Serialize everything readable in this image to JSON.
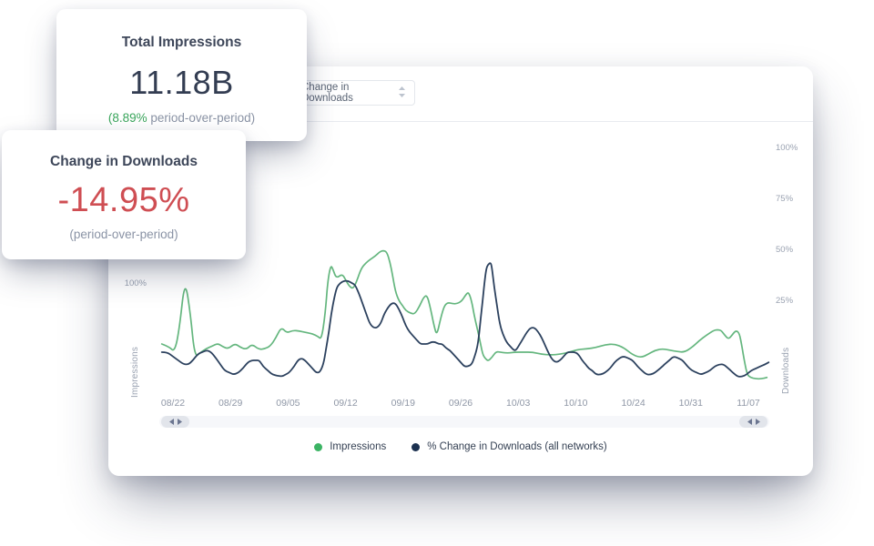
{
  "colors": {
    "accent_green": "#3cb464",
    "accent_red": "#cf4e53",
    "navy_text": "#333d52",
    "muted_gray": "#8a93a5",
    "axis_gray": "#9aa2b1",
    "line_green": "#64b67e",
    "line_navy": "#2c415e",
    "legend_navy_dot": "#1c3150"
  },
  "icons": {
    "select_chevron": "up-down-carets",
    "scroll_handle": "left-right-triangles"
  },
  "stat_cards": {
    "total_impressions": {
      "title": "Total Impressions",
      "value": "11.18B",
      "subtitle_highlight": "(8.89%",
      "subtitle_rest": " period-over-period)"
    },
    "change_in_downloads": {
      "title": "Change in Downloads",
      "value": "-14.95%",
      "subtitle": "(period-over-period)"
    }
  },
  "toolbar": {
    "metric_select": {
      "value": "Change in Downloads"
    }
  },
  "chart_data": {
    "type": "line",
    "x_categories": [
      "08/22",
      "08/29",
      "09/05",
      "09/12",
      "09/19",
      "09/26",
      "10/03",
      "10/10",
      "10/24",
      "10/31",
      "11/07"
    ],
    "axes": {
      "left": {
        "title": "Impressions",
        "ticks": [
          100
        ],
        "unit": "%"
      },
      "right": {
        "title": "Downloads",
        "ticks": [
          100,
          75,
          50,
          25
        ],
        "unit": "%"
      }
    },
    "grid": false,
    "legend_position": "bottom",
    "series": [
      {
        "name": "Impressions",
        "axis": "left",
        "color": "#64b67e",
        "dot_color": "#3cb464",
        "points": [
          [
            0.004,
            12
          ],
          [
            0.016,
            8
          ],
          [
            0.025,
            0
          ],
          [
            0.033,
            35
          ],
          [
            0.042,
            108
          ],
          [
            0.051,
            56
          ],
          [
            0.058,
            -7
          ],
          [
            0.067,
            -1
          ],
          [
            0.076,
            5
          ],
          [
            0.087,
            9
          ],
          [
            0.096,
            13
          ],
          [
            0.104,
            8
          ],
          [
            0.113,
            5
          ],
          [
            0.124,
            13
          ],
          [
            0.133,
            7
          ],
          [
            0.143,
            4
          ],
          [
            0.152,
            12
          ],
          [
            0.163,
            4
          ],
          [
            0.173,
            5
          ],
          [
            0.182,
            9
          ],
          [
            0.191,
            21
          ],
          [
            0.2,
            37
          ],
          [
            0.209,
            28
          ],
          [
            0.219,
            32
          ],
          [
            0.23,
            31
          ],
          [
            0.24,
            29
          ],
          [
            0.251,
            27
          ],
          [
            0.26,
            23
          ],
          [
            0.266,
            19
          ],
          [
            0.272,
            56
          ],
          [
            0.276,
            103
          ],
          [
            0.281,
            128
          ],
          [
            0.285,
            121
          ],
          [
            0.29,
            108
          ],
          [
            0.3,
            115
          ],
          [
            0.306,
            105
          ],
          [
            0.312,
            96
          ],
          [
            0.318,
            93
          ],
          [
            0.324,
            105
          ],
          [
            0.331,
            123
          ],
          [
            0.339,
            131
          ],
          [
            0.346,
            136
          ],
          [
            0.354,
            141
          ],
          [
            0.361,
            147
          ],
          [
            0.367,
            149
          ],
          [
            0.373,
            147
          ],
          [
            0.378,
            132
          ],
          [
            0.382,
            115
          ],
          [
            0.387,
            89
          ],
          [
            0.393,
            75
          ],
          [
            0.399,
            68
          ],
          [
            0.404,
            61
          ],
          [
            0.412,
            57
          ],
          [
            0.419,
            56
          ],
          [
            0.427,
            68
          ],
          [
            0.433,
            80
          ],
          [
            0.439,
            84
          ],
          [
            0.445,
            63
          ],
          [
            0.451,
            36
          ],
          [
            0.455,
            25
          ],
          [
            0.461,
            49
          ],
          [
            0.467,
            68
          ],
          [
            0.473,
            73
          ],
          [
            0.481,
            71
          ],
          [
            0.488,
            71
          ],
          [
            0.496,
            75
          ],
          [
            0.503,
            85
          ],
          [
            0.507,
            88
          ],
          [
            0.512,
            75
          ],
          [
            0.516,
            55
          ],
          [
            0.521,
            35
          ],
          [
            0.525,
            19
          ],
          [
            0.53,
            -3
          ],
          [
            0.534,
            -9
          ],
          [
            0.539,
            -13
          ],
          [
            0.545,
            -8
          ],
          [
            0.552,
            1
          ],
          [
            0.56,
            0
          ],
          [
            0.567,
            -1
          ],
          [
            0.575,
            -1
          ],
          [
            0.582,
            0
          ],
          [
            0.597,
            0
          ],
          [
            0.612,
            0
          ],
          [
            0.627,
            -3
          ],
          [
            0.642,
            -4
          ],
          [
            0.657,
            -3
          ],
          [
            0.672,
            0
          ],
          [
            0.687,
            4
          ],
          [
            0.701,
            5
          ],
          [
            0.716,
            7
          ],
          [
            0.731,
            11
          ],
          [
            0.746,
            12
          ],
          [
            0.761,
            7
          ],
          [
            0.776,
            -4
          ],
          [
            0.79,
            -8
          ],
          [
            0.801,
            -3
          ],
          [
            0.813,
            3
          ],
          [
            0.825,
            5
          ],
          [
            0.837,
            3
          ],
          [
            0.849,
            1
          ],
          [
            0.861,
            0
          ],
          [
            0.873,
            7
          ],
          [
            0.885,
            17
          ],
          [
            0.897,
            25
          ],
          [
            0.909,
            32
          ],
          [
            0.915,
            33
          ],
          [
            0.921,
            32
          ],
          [
            0.927,
            25
          ],
          [
            0.933,
            19
          ],
          [
            0.939,
            25
          ],
          [
            0.945,
            32
          ],
          [
            0.951,
            28
          ],
          [
            0.955,
            9
          ],
          [
            0.96,
            -17
          ],
          [
            0.964,
            -33
          ],
          [
            0.969,
            -37
          ],
          [
            0.978,
            -39
          ],
          [
            0.987,
            -39
          ],
          [
            0.996,
            -37
          ]
        ]
      },
      {
        "name": "% Change in Downloads (all networks)",
        "axis": "right",
        "color": "#2c415e",
        "dot_color": "#1c3150",
        "points": [
          [
            0.004,
            0
          ],
          [
            0.013,
            0
          ],
          [
            0.022,
            -2
          ],
          [
            0.031,
            -4
          ],
          [
            0.04,
            -6
          ],
          [
            0.048,
            -6
          ],
          [
            0.055,
            -4
          ],
          [
            0.063,
            -1
          ],
          [
            0.07,
            0
          ],
          [
            0.078,
            1
          ],
          [
            0.085,
            0
          ],
          [
            0.093,
            -3
          ],
          [
            0.1,
            -6
          ],
          [
            0.107,
            -9
          ],
          [
            0.115,
            -10
          ],
          [
            0.122,
            -11
          ],
          [
            0.13,
            -10
          ],
          [
            0.137,
            -8
          ],
          [
            0.145,
            -5
          ],
          [
            0.152,
            -4
          ],
          [
            0.158,
            -4
          ],
          [
            0.164,
            -4
          ],
          [
            0.17,
            -7
          ],
          [
            0.178,
            -9
          ],
          [
            0.185,
            -11
          ],
          [
            0.2,
            -12
          ],
          [
            0.207,
            -11
          ],
          [
            0.213,
            -10
          ],
          [
            0.221,
            -7
          ],
          [
            0.227,
            -4
          ],
          [
            0.233,
            -3
          ],
          [
            0.239,
            -4
          ],
          [
            0.245,
            -6
          ],
          [
            0.251,
            -8
          ],
          [
            0.257,
            -10
          ],
          [
            0.263,
            -10
          ],
          [
            0.269,
            -6
          ],
          [
            0.273,
            1
          ],
          [
            0.278,
            10
          ],
          [
            0.282,
            19
          ],
          [
            0.287,
            27
          ],
          [
            0.291,
            32
          ],
          [
            0.297,
            34
          ],
          [
            0.303,
            35
          ],
          [
            0.309,
            35
          ],
          [
            0.315,
            34
          ],
          [
            0.321,
            33
          ],
          [
            0.327,
            29
          ],
          [
            0.333,
            24
          ],
          [
            0.339,
            19
          ],
          [
            0.345,
            14
          ],
          [
            0.351,
            12
          ],
          [
            0.357,
            12
          ],
          [
            0.363,
            14
          ],
          [
            0.369,
            19
          ],
          [
            0.375,
            22
          ],
          [
            0.381,
            24
          ],
          [
            0.387,
            24
          ],
          [
            0.393,
            21
          ],
          [
            0.399,
            17
          ],
          [
            0.404,
            13
          ],
          [
            0.41,
            10
          ],
          [
            0.416,
            8
          ],
          [
            0.422,
            6
          ],
          [
            0.428,
            4
          ],
          [
            0.434,
            4
          ],
          [
            0.44,
            4
          ],
          [
            0.446,
            5
          ],
          [
            0.452,
            5
          ],
          [
            0.458,
            4
          ],
          [
            0.464,
            4
          ],
          [
            0.47,
            2
          ],
          [
            0.476,
            1
          ],
          [
            0.482,
            -1
          ],
          [
            0.488,
            -3
          ],
          [
            0.494,
            -5
          ],
          [
            0.5,
            -7
          ],
          [
            0.506,
            -7
          ],
          [
            0.512,
            -6
          ],
          [
            0.516,
            -3
          ],
          [
            0.521,
            2
          ],
          [
            0.524,
            8
          ],
          [
            0.527,
            17
          ],
          [
            0.53,
            25
          ],
          [
            0.533,
            34
          ],
          [
            0.536,
            41
          ],
          [
            0.539,
            43
          ],
          [
            0.543,
            44
          ],
          [
            0.545,
            42
          ],
          [
            0.549,
            32
          ],
          [
            0.554,
            22
          ],
          [
            0.558,
            14
          ],
          [
            0.563,
            9
          ],
          [
            0.569,
            5
          ],
          [
            0.575,
            3
          ],
          [
            0.581,
            1
          ],
          [
            0.585,
            1
          ],
          [
            0.591,
            4
          ],
          [
            0.597,
            7
          ],
          [
            0.603,
            10
          ],
          [
            0.609,
            12
          ],
          [
            0.615,
            12
          ],
          [
            0.621,
            10
          ],
          [
            0.627,
            7
          ],
          [
            0.633,
            3
          ],
          [
            0.639,
            -1
          ],
          [
            0.645,
            -4
          ],
          [
            0.651,
            -5
          ],
          [
            0.657,
            -4
          ],
          [
            0.663,
            -2
          ],
          [
            0.669,
            0
          ],
          [
            0.675,
            0
          ],
          [
            0.681,
            0
          ],
          [
            0.687,
            -1
          ],
          [
            0.693,
            -4
          ],
          [
            0.699,
            -6
          ],
          [
            0.704,
            -8
          ],
          [
            0.71,
            -9
          ],
          [
            0.716,
            -11
          ],
          [
            0.724,
            -11
          ],
          [
            0.731,
            -10
          ],
          [
            0.739,
            -8
          ],
          [
            0.746,
            -5
          ],
          [
            0.754,
            -3
          ],
          [
            0.761,
            -2
          ],
          [
            0.769,
            -3
          ],
          [
            0.776,
            -4
          ],
          [
            0.784,
            -7
          ],
          [
            0.791,
            -9
          ],
          [
            0.799,
            -11
          ],
          [
            0.806,
            -11
          ],
          [
            0.813,
            -10
          ],
          [
            0.821,
            -8
          ],
          [
            0.828,
            -6
          ],
          [
            0.836,
            -4
          ],
          [
            0.843,
            -2
          ],
          [
            0.851,
            -3
          ],
          [
            0.858,
            -4
          ],
          [
            0.866,
            -7
          ],
          [
            0.873,
            -9
          ],
          [
            0.881,
            -10
          ],
          [
            0.888,
            -11
          ],
          [
            0.896,
            -10
          ],
          [
            0.903,
            -9
          ],
          [
            0.91,
            -7
          ],
          [
            0.918,
            -6
          ],
          [
            0.925,
            -6
          ],
          [
            0.933,
            -8
          ],
          [
            0.94,
            -10
          ],
          [
            0.948,
            -12
          ],
          [
            0.955,
            -12
          ],
          [
            0.963,
            -11
          ],
          [
            0.97,
            -9
          ],
          [
            0.978,
            -8
          ],
          [
            0.985,
            -7
          ],
          [
            0.993,
            -6
          ],
          [
            0.999,
            -5
          ]
        ]
      }
    ],
    "legend": [
      {
        "label": "Impressions",
        "color": "#3cb464"
      },
      {
        "label": "% Change in Downloads (all networks)",
        "color": "#1c3150"
      }
    ]
  }
}
